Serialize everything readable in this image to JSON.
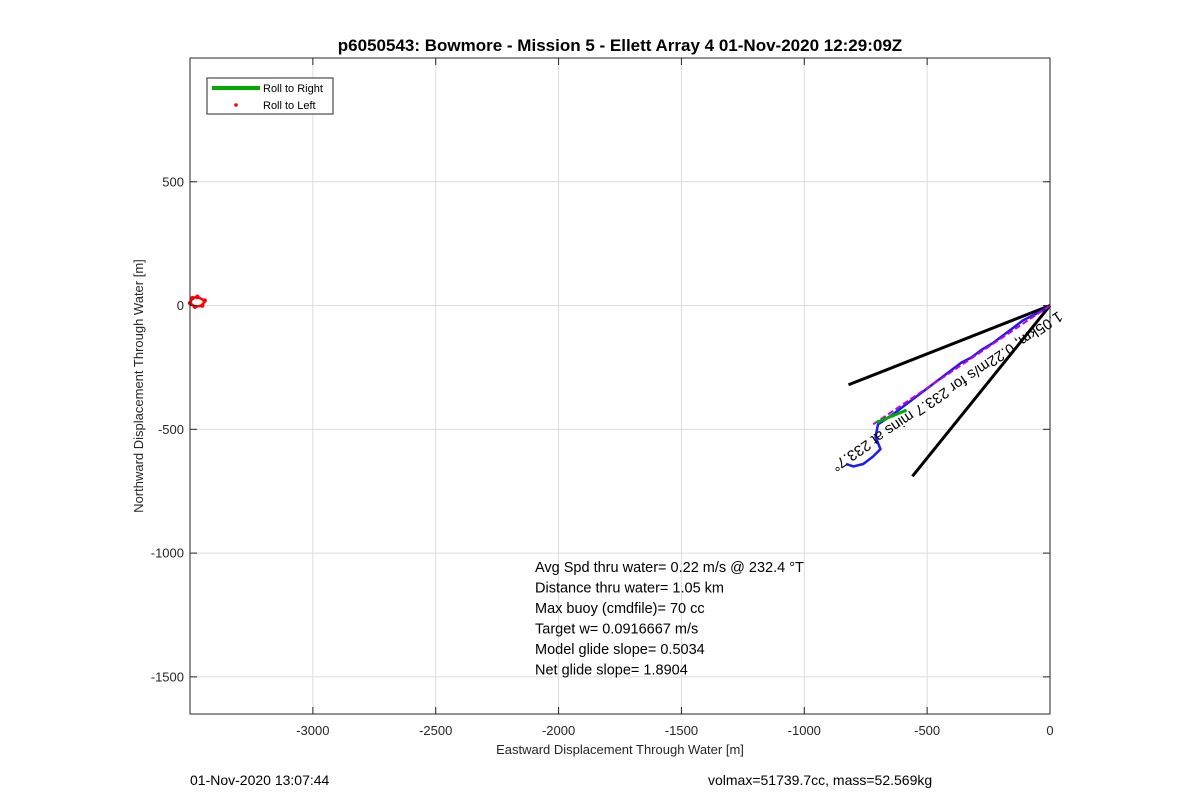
{
  "chart_data": {
    "type": "line",
    "title": "p6050543: Bowmore - Mission 5 - Ellett Array 4 01-Nov-2020 12:29:09Z",
    "xlabel": "Eastward Displacement Through Water [m]",
    "ylabel": "Northward Displacement Through Water [m]",
    "xlim": [
      -3500,
      0
    ],
    "ylim": [
      -1650,
      1000
    ],
    "xticks": [
      -3000,
      -2500,
      -2000,
      -1500,
      -1000,
      -500,
      0
    ],
    "yticks": [
      500,
      0,
      -500,
      -1000,
      -1500
    ],
    "grid": true,
    "legend_position": "top-left",
    "legend": [
      {
        "label": "Roll to Right",
        "color": "#00aa00",
        "style": "line"
      },
      {
        "label": "Roll to Left",
        "color": "#ff0000",
        "style": "dot"
      }
    ],
    "series": [
      {
        "name": "Roll to Right",
        "color": "#00aa00",
        "x": [
          -700,
          -640,
          -590
        ],
        "y": [
          -470,
          -445,
          -425
        ]
      },
      {
        "name": "Roll to Left",
        "color": "#ff0000",
        "x": [
          -3470,
          -3440,
          -3450,
          -3480,
          -3500,
          -3490,
          -3470
        ],
        "y": [
          35,
          20,
          0,
          -5,
          10,
          30,
          35
        ]
      }
    ],
    "track": {
      "color": "#1a1aff",
      "x": [
        0,
        -30,
        -70,
        -110,
        -150,
        -190,
        -230,
        -280,
        -320,
        -360,
        -400,
        -440,
        -480,
        -520,
        -560,
        -600,
        -640,
        -670,
        -700,
        -710,
        -690,
        -720,
        -760,
        -800,
        -830
      ],
      "y": [
        0,
        -20,
        -40,
        -60,
        -90,
        -120,
        -150,
        -180,
        -210,
        -230,
        -260,
        -290,
        -320,
        -350,
        -380,
        -410,
        -440,
        -460,
        -480,
        -530,
        -580,
        -610,
        -640,
        -650,
        -640
      ]
    },
    "magenta_line": {
      "color": "#cc00cc",
      "x": [
        0,
        -720
      ],
      "y": [
        0,
        -480
      ]
    },
    "bearing_lines": [
      {
        "x": [
          0,
          -820
        ],
        "y": [
          0,
          -320
        ]
      },
      {
        "x": [
          0,
          -560
        ],
        "y": [
          0,
          -690
        ]
      }
    ],
    "track_annotation": {
      "text": "1.05km, 0.22m/s for 233.7 mins at 233.7°",
      "x": -430,
      "y": -330
    },
    "stats": [
      "Avg Spd thru water=  0.22 m/s @ 232.4 °T",
      "Distance thru water=  1.05 km",
      "Max buoy (cmdfile)= 70 cc",
      "Target w= 0.0916667 m/s",
      "Model glide slope= 0.5034",
      "Net glide slope= 1.8904"
    ]
  },
  "footer": {
    "left": "01-Nov-2020 13:07:44",
    "right": "volmax=51739.7cc, mass=52.569kg"
  }
}
